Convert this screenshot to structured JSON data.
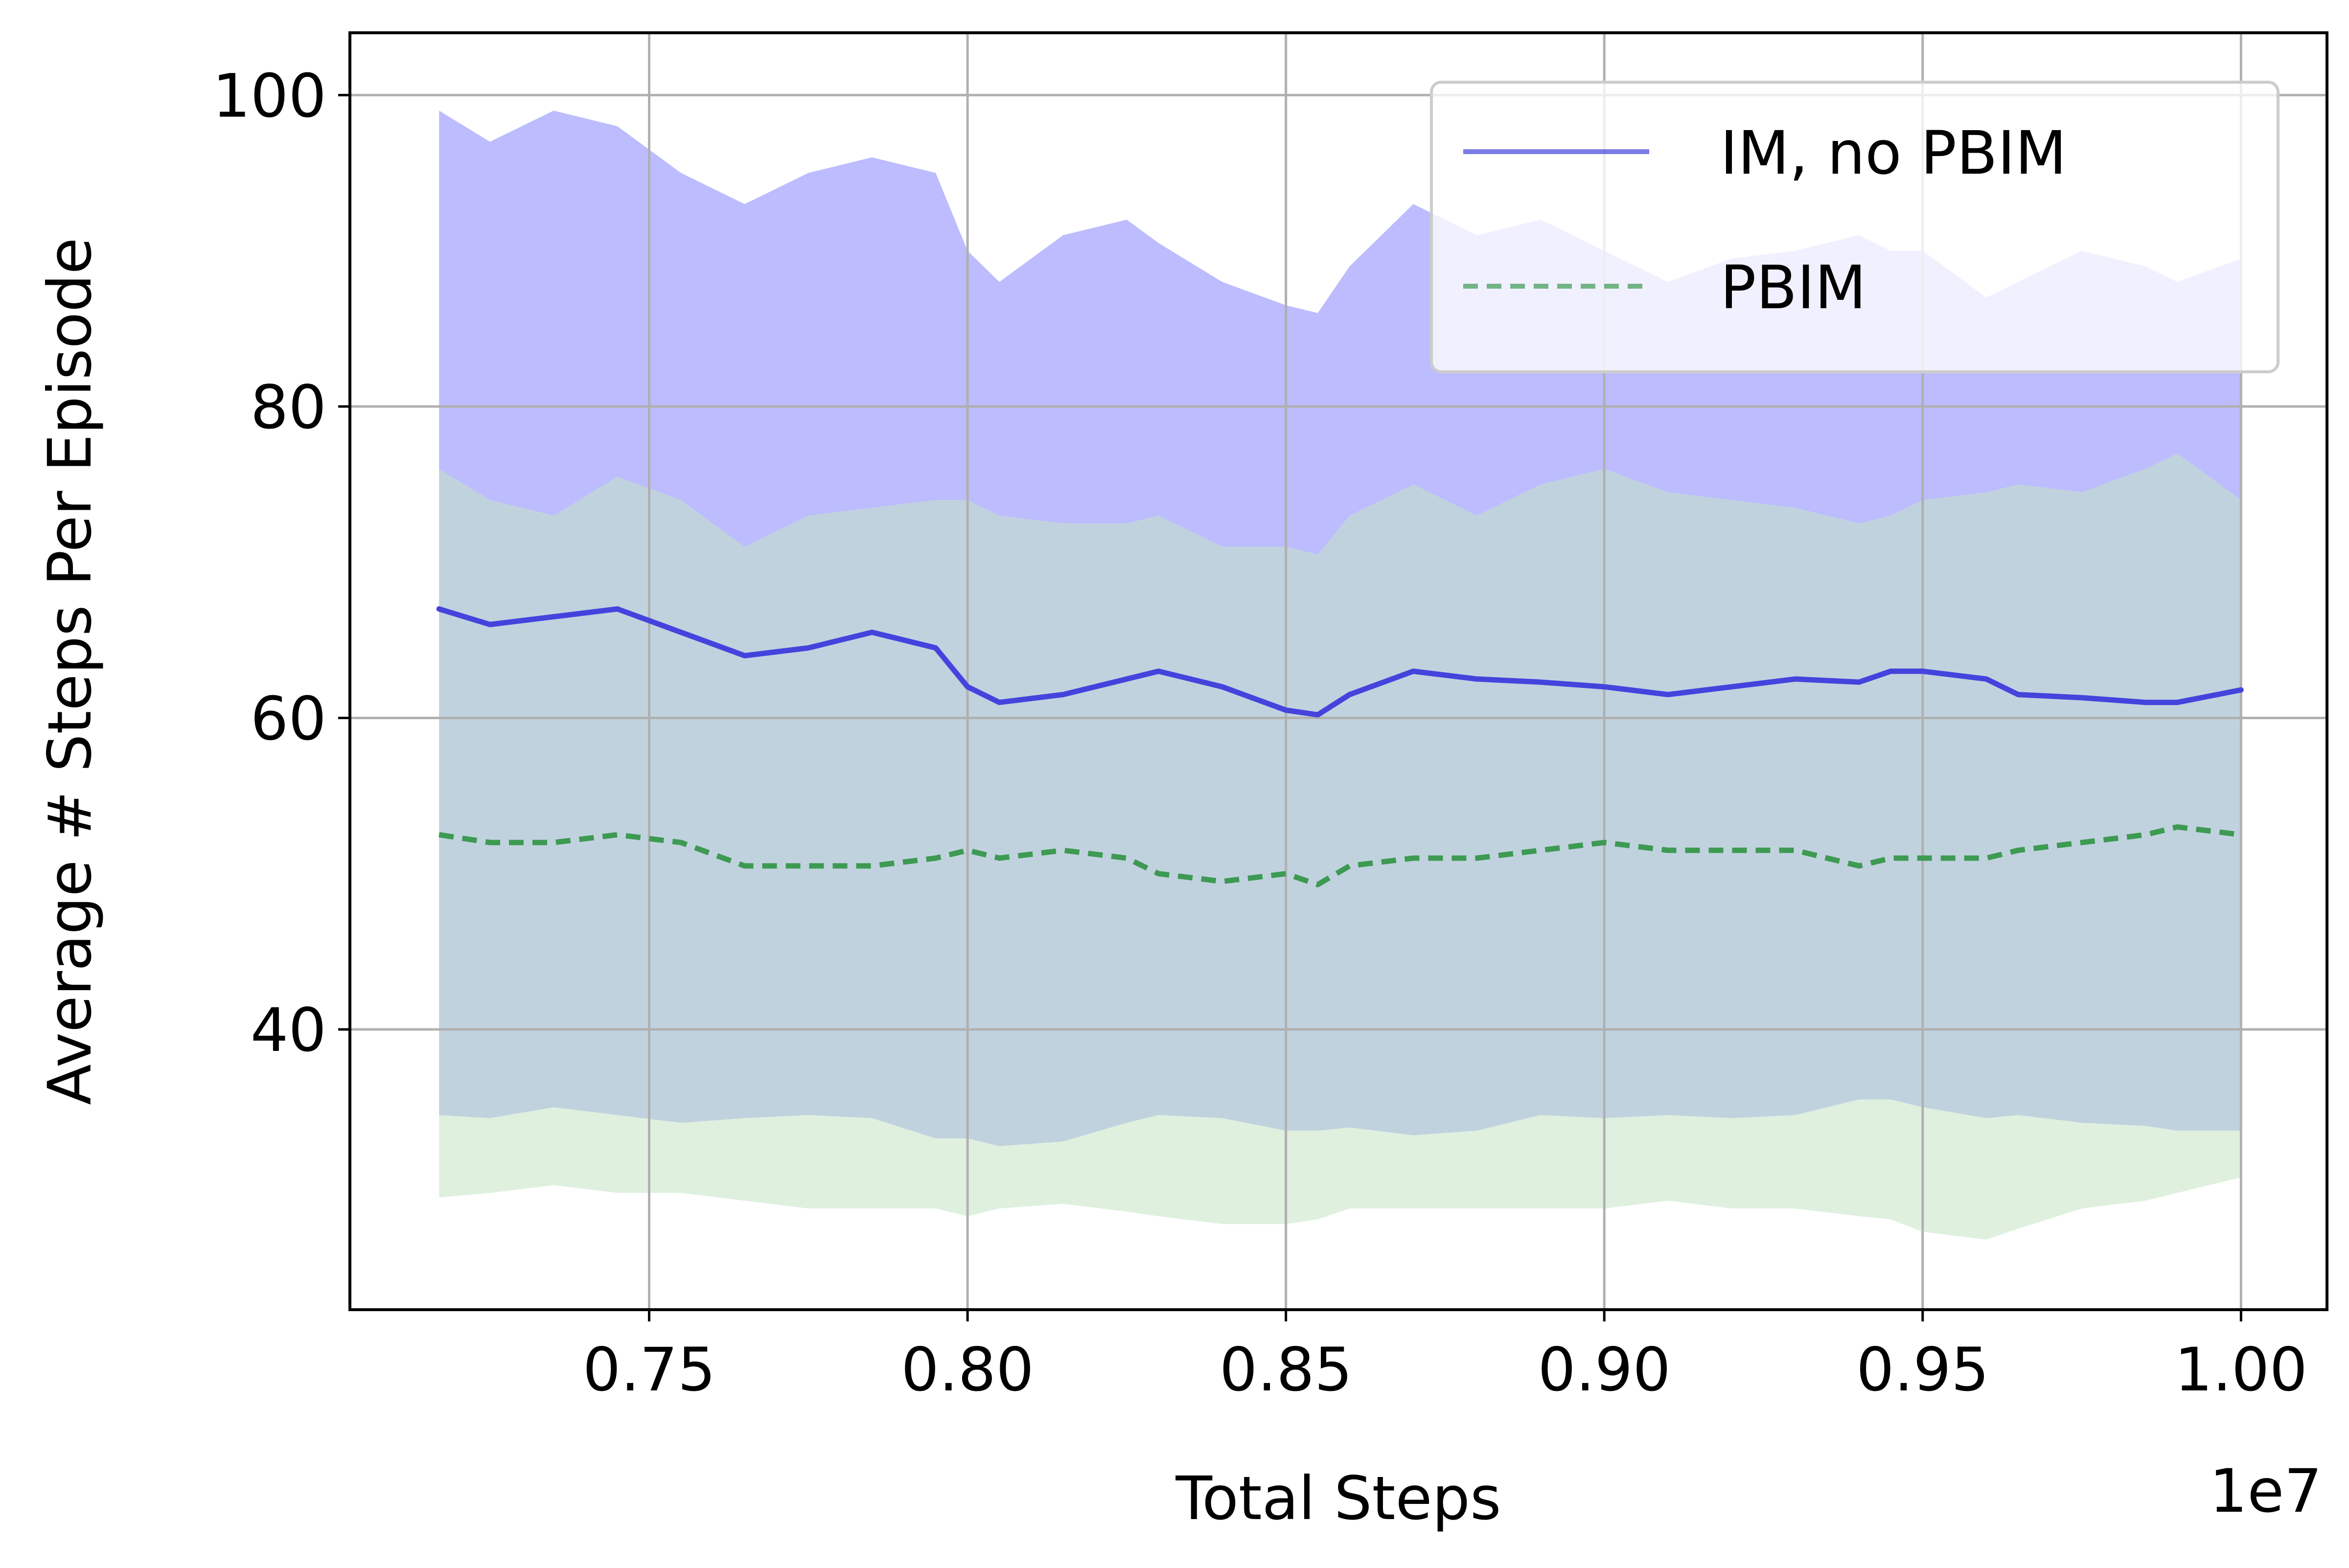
{
  "chart_data": {
    "type": "line",
    "xlabel": "Total Steps",
    "ylabel": "Average # Steps Per Episode",
    "x_offset_label": "1e7",
    "xlim": [
      0.703,
      1.0135
    ],
    "ylim": [
      22,
      104
    ],
    "x_ticks": [
      "0.75",
      "0.80",
      "0.85",
      "0.90",
      "0.95",
      "1.00"
    ],
    "y_ticks": [
      "40",
      "60",
      "80",
      "100"
    ],
    "grid": true,
    "legend_position": "top-right",
    "series": [
      {
        "name": "IM, no PBIM",
        "color": "#4444dd",
        "band_color": "#bcbcff",
        "line_style": "solid",
        "x": [
          0.717,
          0.725,
          0.735,
          0.745,
          0.755,
          0.765,
          0.775,
          0.785,
          0.795,
          0.8,
          0.805,
          0.815,
          0.825,
          0.83,
          0.84,
          0.85,
          0.855,
          0.86,
          0.87,
          0.88,
          0.89,
          0.9,
          0.91,
          0.92,
          0.93,
          0.94,
          0.945,
          0.95,
          0.96,
          0.965,
          0.975,
          0.985,
          0.99,
          1.0
        ],
        "mean": [
          67,
          66,
          66.5,
          67,
          65.5,
          64,
          64.5,
          65.5,
          64.5,
          62,
          61,
          61.5,
          62.5,
          63,
          62,
          60.5,
          60.2,
          61.5,
          63,
          62.5,
          62.3,
          62,
          61.5,
          62,
          62.5,
          62.3,
          63,
          63,
          62.5,
          61.5,
          61.3,
          61,
          61,
          61.8
        ],
        "upper": [
          99,
          97,
          99,
          98,
          95,
          93,
          95,
          96,
          95,
          90,
          88,
          91,
          92,
          90.5,
          88,
          86.5,
          86,
          89,
          93,
          91,
          92,
          90,
          88,
          89.5,
          90,
          91,
          90,
          90,
          87,
          88,
          90,
          89,
          88,
          89.5
        ],
        "lower": [
          34.5,
          34.3,
          35,
          34.5,
          34,
          34.3,
          34.5,
          34.3,
          33,
          33,
          32.5,
          32.8,
          34,
          34.5,
          34.3,
          33.5,
          33.5,
          33.7,
          33.2,
          33.5,
          34.5,
          34.3,
          34.5,
          34.3,
          34.5,
          35.5,
          35.5,
          35,
          34.3,
          34.5,
          34,
          33.8,
          33.5,
          33.5
        ]
      },
      {
        "name": "PBIM",
        "color": "#3d9a52",
        "band_color": "#c4e3c4",
        "line_style": "dashed",
        "x": [
          0.717,
          0.725,
          0.735,
          0.745,
          0.755,
          0.765,
          0.775,
          0.785,
          0.795,
          0.8,
          0.805,
          0.815,
          0.825,
          0.83,
          0.84,
          0.85,
          0.855,
          0.86,
          0.87,
          0.88,
          0.89,
          0.9,
          0.91,
          0.92,
          0.93,
          0.94,
          0.945,
          0.95,
          0.96,
          0.965,
          0.975,
          0.985,
          0.99,
          1.0
        ],
        "mean": [
          52.5,
          52,
          52,
          52.5,
          52,
          50.5,
          50.5,
          50.5,
          51,
          51.5,
          51,
          51.5,
          51,
          50,
          49.5,
          50,
          49.3,
          50.5,
          51,
          51,
          51.5,
          52,
          51.5,
          51.5,
          51.5,
          50.5,
          51,
          51,
          51,
          51.5,
          52,
          52.5,
          53,
          52.5
        ],
        "upper": [
          76,
          74,
          73,
          75.5,
          74,
          71,
          73,
          73.5,
          74,
          74,
          73,
          72.5,
          72.5,
          73,
          71,
          71,
          70.5,
          73,
          75,
          73,
          75,
          76,
          74.5,
          74,
          73.5,
          72.5,
          73,
          74,
          74.5,
          75,
          74.5,
          76,
          77,
          74
        ],
        "lower": [
          29.2,
          29.5,
          30,
          29.5,
          29.5,
          29,
          28.5,
          28.5,
          28.5,
          28,
          28.5,
          28.8,
          28.3,
          28,
          27.5,
          27.5,
          27.8,
          28.5,
          28.5,
          28.5,
          28.5,
          28.5,
          29,
          28.5,
          28.5,
          28,
          27.8,
          27,
          26.5,
          27.2,
          28.5,
          29,
          29.5,
          30.5
        ]
      }
    ]
  }
}
